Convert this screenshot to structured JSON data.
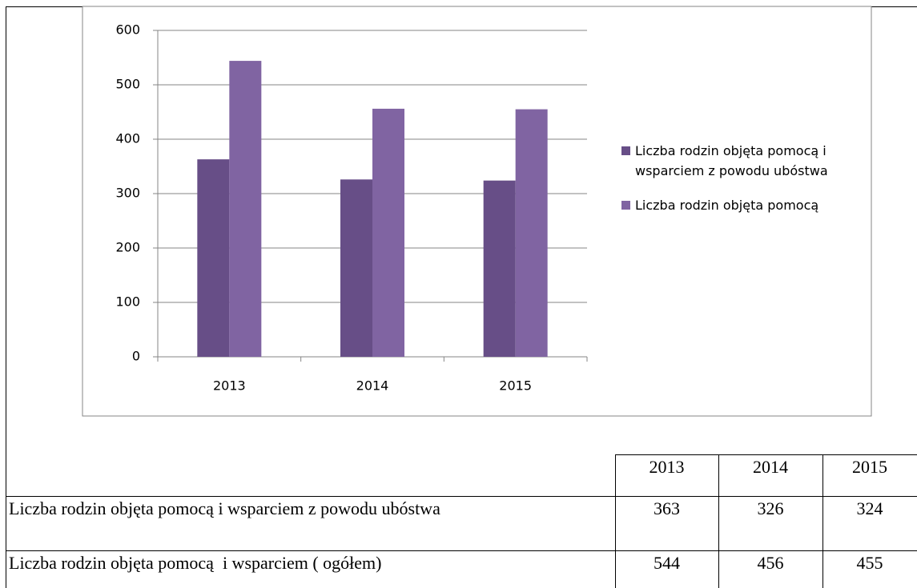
{
  "chart_data": {
    "type": "bar",
    "categories": [
      "2013",
      "2014",
      "2015"
    ],
    "series": [
      {
        "name": "Liczba rodzin objęta pomocą i wsparciem z powodu ubóstwa",
        "color": "#674e87",
        "values": [
          363,
          326,
          324
        ]
      },
      {
        "name": "Liczba rodzin objęta pomocą",
        "color": "#8064a2",
        "values": [
          544,
          456,
          455
        ]
      }
    ],
    "ylim": [
      0,
      600
    ],
    "yticks": [
      0,
      100,
      200,
      300,
      400,
      500,
      600
    ],
    "grid": true,
    "legend": "right"
  },
  "table": {
    "header": [
      "2013",
      "2014",
      "2015"
    ],
    "rows": [
      [
        "Liczba rodzin objęta pomocą i wsparciem z powodu ubóstwa",
        363,
        326,
        324
      ],
      [
        "Liczba rodzin objęta pomocą  i wsparciem ( ogółem)",
        544,
        456,
        455
      ]
    ]
  }
}
